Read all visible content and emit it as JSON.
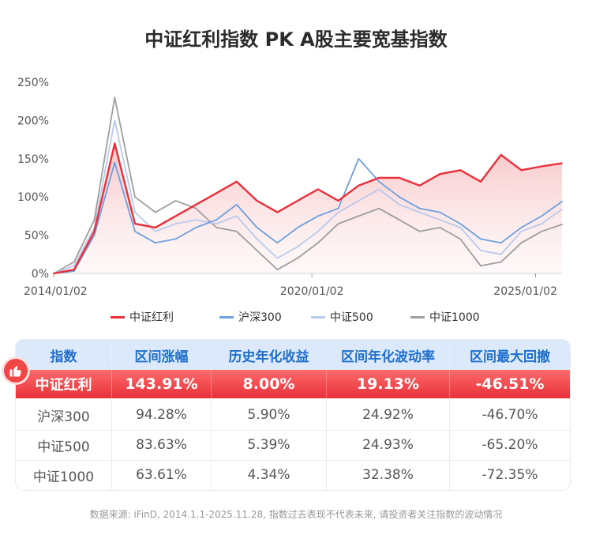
{
  "title": "中证红利指数 PK A股主要宽基指数",
  "chart_data": {
    "type": "line",
    "title": "中证红利指数 PK A股主要宽基指数",
    "x_ticks": [
      "2014/01/02",
      "2020/01/02",
      "2025/01/02"
    ],
    "x_range": [
      "2014/01/02",
      "2025/11/28"
    ],
    "y_ticks": [
      "250%",
      "200%",
      "150%",
      "100%",
      "50%",
      "0%"
    ],
    "ylim": [
      0,
      250
    ],
    "ylabel": "",
    "xlabel": "",
    "grid": false,
    "legend_position": "bottom",
    "x": [
      "2014/01",
      "2014/07",
      "2015/01",
      "2015/06",
      "2015/09",
      "2016/01",
      "2016/07",
      "2017/01",
      "2017/07",
      "2018/01",
      "2018/07",
      "2019/01",
      "2019/07",
      "2020/01",
      "2020/07",
      "2021/01",
      "2021/07",
      "2022/01",
      "2022/07",
      "2023/01",
      "2023/07",
      "2024/01",
      "2024/07",
      "2025/01",
      "2025/07",
      "2025/11"
    ],
    "series": [
      {
        "name": "中证红利",
        "color": "#e8303a",
        "values": [
          0,
          5,
          55,
          170,
          65,
          60,
          75,
          90,
          105,
          120,
          95,
          80,
          95,
          110,
          95,
          115,
          125,
          125,
          115,
          130,
          135,
          120,
          155,
          135,
          140,
          144
        ]
      },
      {
        "name": "沪深300",
        "color": "#6f9fdf",
        "values": [
          0,
          3,
          50,
          145,
          55,
          40,
          45,
          60,
          70,
          90,
          60,
          40,
          60,
          75,
          85,
          150,
          120,
          100,
          85,
          80,
          65,
          45,
          40,
          60,
          75,
          94
        ]
      },
      {
        "name": "中证500",
        "color": "#b9c9ec",
        "values": [
          0,
          10,
          60,
          200,
          80,
          55,
          65,
          70,
          65,
          75,
          45,
          20,
          35,
          55,
          80,
          95,
          110,
          90,
          80,
          70,
          60,
          30,
          25,
          55,
          65,
          84
        ]
      },
      {
        "name": "中证1000",
        "color": "#9e9e9e",
        "values": [
          0,
          15,
          70,
          230,
          100,
          80,
          95,
          85,
          60,
          55,
          30,
          5,
          20,
          40,
          65,
          75,
          85,
          70,
          55,
          60,
          45,
          10,
          15,
          40,
          55,
          64
        ]
      }
    ]
  },
  "legend": [
    {
      "label": "中证红利",
      "color": "#e8303a"
    },
    {
      "label": "沪深300",
      "color": "#6f9fdf"
    },
    {
      "label": "中证500",
      "color": "#b9c9ec"
    },
    {
      "label": "中证1000",
      "color": "#9e9e9e"
    }
  ],
  "table": {
    "headers": [
      "指数",
      "区间涨幅",
      "历史年化收益",
      "区间年化波动率",
      "区间最大回撤"
    ],
    "rows": [
      [
        "中证红利",
        "143.91%",
        "8.00%",
        "19.13%",
        "-46.51%"
      ],
      [
        "沪深300",
        "94.28%",
        "5.90%",
        "24.92%",
        "-46.70%"
      ],
      [
        "中证500",
        "83.63%",
        "5.39%",
        "24.93%",
        "-65.20%"
      ],
      [
        "中证1000",
        "63.61%",
        "4.34%",
        "32.38%",
        "-72.35%"
      ]
    ]
  },
  "source": "数据来源: iFinD, 2014.1.1-2025.11.28, 指数过去表现不代表未来, 请投资者关注指数的波动情况"
}
